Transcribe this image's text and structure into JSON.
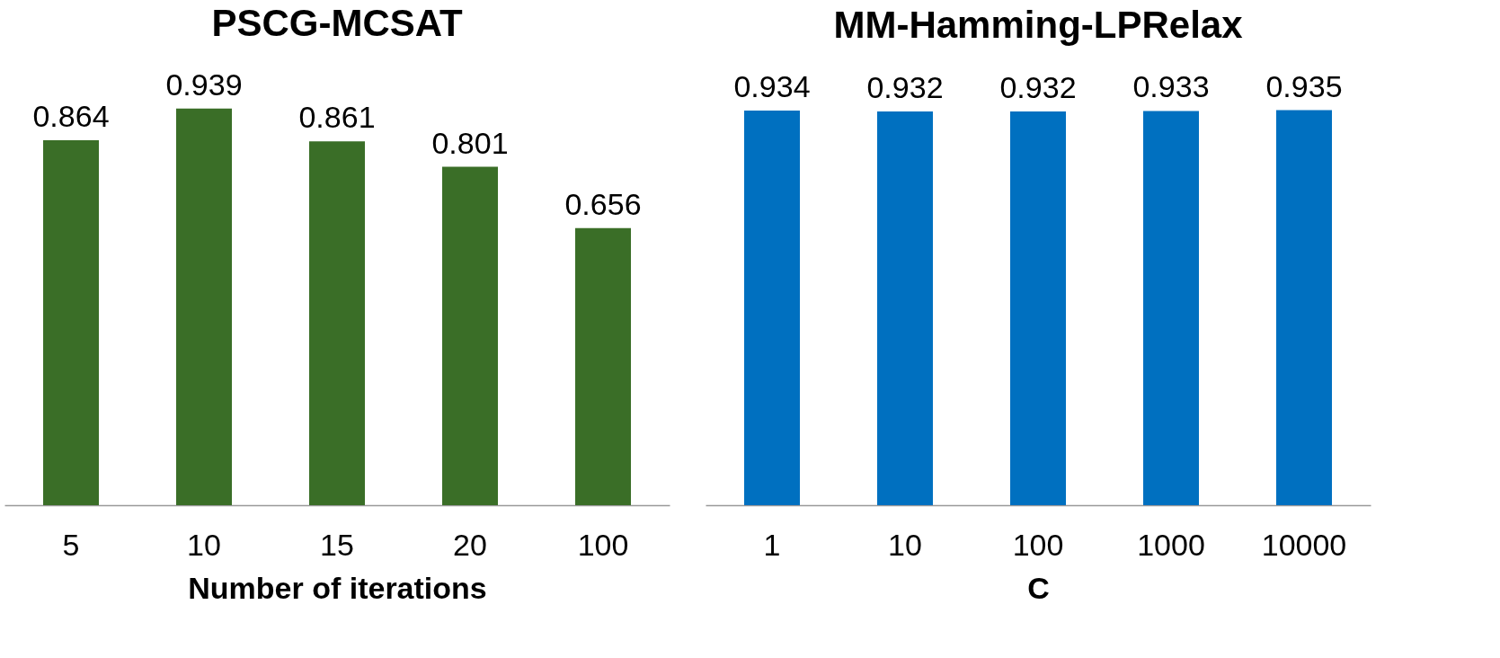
{
  "chart_data": [
    {
      "type": "bar",
      "title": "PSCG-MCSAT",
      "xlabel": "Number of iterations",
      "categories": [
        "5",
        "10",
        "15",
        "20",
        "100"
      ],
      "values": [
        0.864,
        0.939,
        0.861,
        0.801,
        0.656
      ],
      "color": "#3a6e27",
      "data_labels": true,
      "tick_labels": "x"
    },
    {
      "type": "bar",
      "title": "MM-Hamming-LPRelax",
      "xlabel": "C",
      "categories": [
        "1",
        "10",
        "100",
        "1000",
        "10000"
      ],
      "values": [
        0.934,
        0.932,
        0.932,
        0.933,
        0.935
      ],
      "color": "#0070c0",
      "data_labels": true,
      "tick_labels": "x"
    }
  ]
}
